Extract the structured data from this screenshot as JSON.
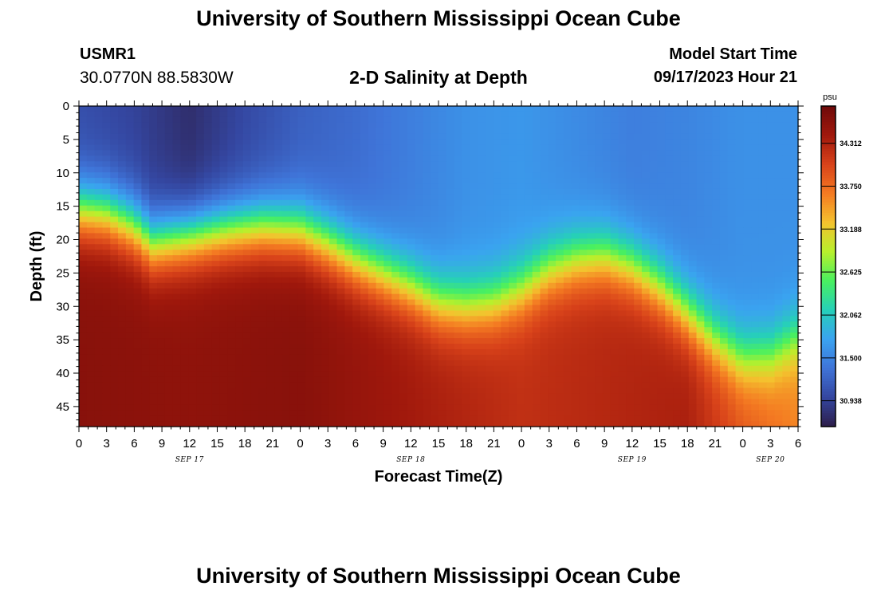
{
  "header": {
    "title": "University of Southern Mississippi Ocean Cube",
    "station_id": "USMR1",
    "station_coords": "30.0770N  88.5830W",
    "chart_title": "2-D Salinity at Depth",
    "model_start_label": "Model Start Time",
    "model_start_value": "09/17/2023 Hour 21"
  },
  "footer": {
    "title": "University of Southern Mississippi Ocean Cube"
  },
  "chart_data": {
    "type": "heatmap",
    "title": "2-D Salinity at Depth",
    "xlabel": "Forecast Time(Z)",
    "ylabel": "Depth (ft)",
    "x_range_hours": [
      0,
      78
    ],
    "y_range_ft": [
      0,
      48
    ],
    "x_ticks": [
      "0",
      "3",
      "6",
      "9",
      "12",
      "15",
      "18",
      "21",
      "0",
      "3",
      "6",
      "9",
      "12",
      "15",
      "18",
      "21",
      "0",
      "3",
      "6",
      "9",
      "12",
      "15",
      "18",
      "21",
      "0",
      "3",
      "6"
    ],
    "y_ticks": [
      "0",
      "5",
      "10",
      "15",
      "20",
      "25",
      "30",
      "35",
      "40",
      "45"
    ],
    "date_labels": [
      {
        "hour": 12,
        "label": "SEP 17"
      },
      {
        "hour": 36,
        "label": "SEP 18"
      },
      {
        "hour": 60,
        "label": "SEP 19"
      },
      {
        "hour": 75,
        "label": "SEP 20"
      }
    ],
    "colorbar": {
      "unit": "psu",
      "min": 30.6,
      "max": 34.8,
      "ticks": [
        "34.312",
        "33.750",
        "33.188",
        "32.625",
        "32.062",
        "31.500",
        "30.938"
      ],
      "colors": [
        "#2d1e4a",
        "#3446a0",
        "#3f74d8",
        "#3aa3f0",
        "#26d0b8",
        "#49f060",
        "#b8f02c",
        "#f4c22e",
        "#f47a22",
        "#d8421a",
        "#a0180c",
        "#6e0a0a"
      ]
    },
    "halocline_depth_ft": [
      {
        "hour": 0,
        "depth": 15.5
      },
      {
        "hour": 3,
        "depth": 16
      },
      {
        "hour": 6,
        "depth": 18
      },
      {
        "hour": 8,
        "depth": 20.5
      },
      {
        "hour": 12,
        "depth": 19.5
      },
      {
        "hour": 16,
        "depth": 18.5
      },
      {
        "hour": 20,
        "depth": 18
      },
      {
        "hour": 24,
        "depth": 18.5
      },
      {
        "hour": 27,
        "depth": 20.5
      },
      {
        "hour": 30,
        "depth": 23
      },
      {
        "hour": 33,
        "depth": 25
      },
      {
        "hour": 36,
        "depth": 27
      },
      {
        "hour": 39,
        "depth": 29.5
      },
      {
        "hour": 42,
        "depth": 30
      },
      {
        "hour": 45,
        "depth": 29.5
      },
      {
        "hour": 48,
        "depth": 27.5
      },
      {
        "hour": 51,
        "depth": 24.5
      },
      {
        "hour": 54,
        "depth": 23
      },
      {
        "hour": 57,
        "depth": 22.5
      },
      {
        "hour": 60,
        "depth": 24
      },
      {
        "hour": 63,
        "depth": 27
      },
      {
        "hour": 66,
        "depth": 31
      },
      {
        "hour": 69,
        "depth": 35
      },
      {
        "hour": 72,
        "depth": 38
      },
      {
        "hour": 75,
        "depth": 37.5
      },
      {
        "hour": 78,
        "depth": 34.5
      }
    ],
    "surface_salinity_psu": [
      {
        "hour": 0,
        "value": 31.05
      },
      {
        "hour": 6,
        "value": 30.95
      },
      {
        "hour": 12,
        "value": 30.75
      },
      {
        "hour": 18,
        "value": 31.0
      },
      {
        "hour": 24,
        "value": 31.2
      },
      {
        "hour": 30,
        "value": 31.3
      },
      {
        "hour": 36,
        "value": 31.45
      },
      {
        "hour": 42,
        "value": 31.6
      },
      {
        "hour": 48,
        "value": 31.65
      },
      {
        "hour": 54,
        "value": 31.55
      },
      {
        "hour": 60,
        "value": 31.45
      },
      {
        "hour": 66,
        "value": 31.5
      },
      {
        "hour": 72,
        "value": 31.6
      },
      {
        "hour": 78,
        "value": 31.6
      }
    ],
    "bottom_salinity_psu": [
      {
        "hour": 0,
        "value": 34.6
      },
      {
        "hour": 12,
        "value": 34.55
      },
      {
        "hour": 24,
        "value": 34.6
      },
      {
        "hour": 36,
        "value": 34.4
      },
      {
        "hour": 48,
        "value": 34.2
      },
      {
        "hour": 60,
        "value": 34.3
      },
      {
        "hour": 66,
        "value": 34.35
      },
      {
        "hour": 72,
        "value": 33.9
      },
      {
        "hour": 78,
        "value": 33.6
      }
    ]
  }
}
